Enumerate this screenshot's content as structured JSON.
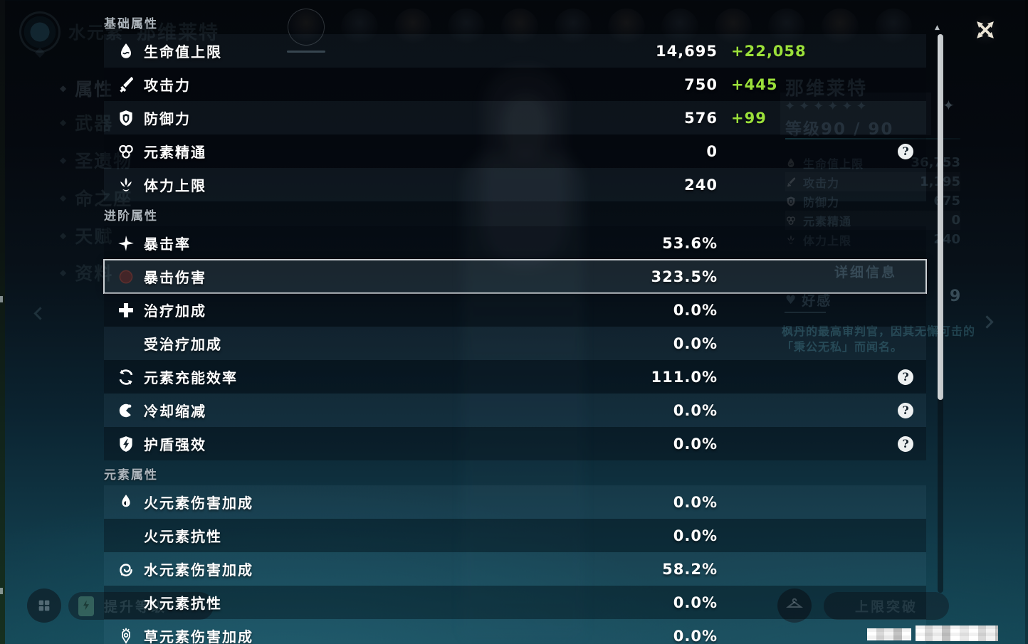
{
  "colors": {
    "bonus_green": "#9be03a",
    "selected_border": "#cbd0d4",
    "help_badge_bg": "#edf0f1"
  },
  "overlay": {
    "sections": [
      {
        "title": "基础属性",
        "rows": [
          {
            "icon": "hp-icon",
            "label": "生命值上限",
            "value": "14,695",
            "bonus": "+22,058"
          },
          {
            "icon": "atk-icon",
            "label": "攻击力",
            "value": "750",
            "bonus": "+445"
          },
          {
            "icon": "def-icon",
            "label": "防御力",
            "value": "576",
            "bonus": "+99"
          },
          {
            "icon": "em-icon",
            "label": "元素精通",
            "value": "0",
            "help": true
          },
          {
            "icon": "stamina-icon",
            "label": "体力上限",
            "value": "240"
          }
        ]
      },
      {
        "title": "进阶属性",
        "rows": [
          {
            "icon": "crit-rate-icon",
            "label": "暴击率",
            "value": "53.6%"
          },
          {
            "icon": "crit-dmg-icon",
            "label": "暴击伤害",
            "value": "323.5%",
            "selected": true
          },
          {
            "icon": "heal-icon",
            "label": "治疗加成",
            "value": "0.0%"
          },
          {
            "icon": "none",
            "label": "受治疗加成",
            "value": "0.0%"
          },
          {
            "icon": "energy-icon",
            "label": "元素充能效率",
            "value": "111.0%",
            "help": true
          },
          {
            "icon": "cd-icon",
            "label": "冷却缩减",
            "value": "0.0%",
            "help": true
          },
          {
            "icon": "shield-strength-icon",
            "label": "护盾强效",
            "value": "0.0%",
            "help": true
          }
        ]
      },
      {
        "title": "元素属性",
        "rows": [
          {
            "icon": "pyro-icon",
            "label": "火元素伤害加成",
            "value": "0.0%"
          },
          {
            "icon": "none",
            "label": "火元素抗性",
            "value": "0.0%"
          },
          {
            "icon": "hydro-icon",
            "label": "水元素伤害加成",
            "value": "58.2%"
          },
          {
            "icon": "none",
            "label": "水元素抗性",
            "value": "0.0%"
          },
          {
            "icon": "dendro-icon",
            "label": "草元素伤害加成",
            "value": "0.0%"
          }
        ]
      }
    ],
    "help_glyph": "?"
  },
  "background": {
    "page_title": "水元素",
    "character_name_ghost": "那维莱特",
    "avatar_count": 12,
    "sidebar": {
      "items": [
        "属性",
        "武器",
        "圣遗物",
        "命之座",
        "天赋",
        "资料"
      ]
    },
    "info_panel": {
      "name": "那维莱特",
      "stars": 6,
      "star_glyph": "✦",
      "level_label": "等级90 / 90",
      "stats": [
        {
          "icon": "hp-icon",
          "label": "生命值上限",
          "value": "36,753"
        },
        {
          "icon": "atk-icon",
          "label": "攻击力",
          "value": "1,195"
        },
        {
          "icon": "def-icon",
          "label": "防御力",
          "value": "675"
        },
        {
          "icon": "em-icon",
          "label": "元素精通",
          "value": "0"
        },
        {
          "icon": "stamina-icon",
          "label": "体力上限",
          "value": "240"
        }
      ],
      "detail_button": "详细信息",
      "friendship_label": "好感",
      "friendship_heart": "♥",
      "friendship_level": "9",
      "description_line1": "枫丹的最高审判官，因其无懈可击的",
      "description_line2": "「秉公无私」而闻名。",
      "sparkle_glyph": "✦"
    },
    "bottom": {
      "level_up_label": "提升等级",
      "ascend_label": "上限突破"
    },
    "scrollbar_arrow_glyph": "▲"
  }
}
